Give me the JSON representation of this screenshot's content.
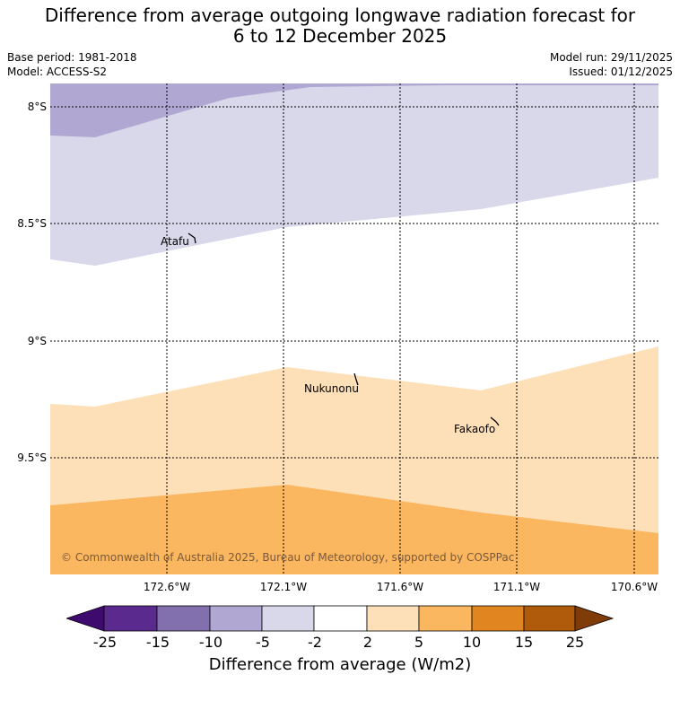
{
  "title_line1": "Difference from average outgoing longwave radiation forecast for",
  "title_line2": "6 to 12 December 2025",
  "base_period": "Base period: 1981-2018",
  "model": "Model: ACCESS-S2",
  "model_run": "Model run: 29/11/2025",
  "issued": "Issued: 01/12/2025",
  "latitudes": [
    "8°S",
    "8.5°S",
    "9°S",
    "9.5°S"
  ],
  "longitudes": [
    "172.6°W",
    "172.1°W",
    "171.6°W",
    "171.1°W",
    "170.6°W"
  ],
  "places": [
    "Atafu",
    "Nukunonu",
    "Fakaofo"
  ],
  "copyright": "© Commonwealth of Australia 2025, Bureau of Meteorology, supported by COSPPac",
  "legend": {
    "title": "Difference from average (W/m2)",
    "ticks": [
      "-25",
      "-15",
      "-10",
      "-5",
      "-2",
      "2",
      "5",
      "10",
      "15",
      "25"
    ],
    "colors": [
      "#3f0a6e",
      "#5b2a8e",
      "#8170ad",
      "#b0a8d2",
      "#d8d8ea",
      "#ffffff",
      "#fde0b8",
      "#fbb660",
      "#e08520",
      "#b05a0b",
      "#7f3b08"
    ]
  }
}
